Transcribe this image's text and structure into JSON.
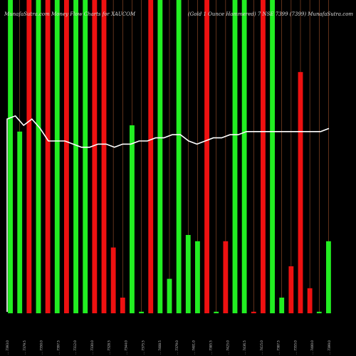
{
  "chart_data": {
    "type": "bar",
    "title_left": "MunafaSutra.com  Money Flow  Charts for XAUCOM",
    "title_right": "(Gold 1 Ounce Hammered) 7 NSE 7399 (7399)  MunafaSutra.com",
    "colors": {
      "background": "#000000",
      "up": "#22ee22",
      "down": "#ee1111",
      "price_line": "#ffffff",
      "separator": "#a0522d"
    },
    "ylim": [
      0,
      100
    ],
    "x_labels": [
      "... 7393.0",
      "... 7379.5",
      "... 7350.0",
      "... 7397.5",
      "... 7312.0",
      "... 7330.0",
      "... 7328.5",
      "... 7344.0",
      "... 7375.5",
      "... 7408.5",
      "... 7379.0",
      "... 7401.0",
      "... 7385.5",
      "... 7425.0",
      "... 7436.5",
      "... 7415.0",
      "... 7387.5",
      "... 7355.0",
      "... 7400.0",
      "... 7399.0"
    ],
    "series": [
      {
        "name": "money flow",
        "values": [
          {
            "dir": "up",
            "v": 100
          },
          {
            "dir": "up",
            "v": 58
          },
          {
            "dir": "down",
            "v": 100
          },
          {
            "dir": "up",
            "v": 100
          },
          {
            "dir": "down",
            "v": 100
          },
          {
            "dir": "up",
            "v": 100
          },
          {
            "dir": "down",
            "v": 100
          },
          {
            "dir": "up",
            "v": 100
          },
          {
            "dir": "up",
            "v": 100
          },
          {
            "dir": "down",
            "v": 100
          },
          {
            "dir": "down",
            "v": 100
          },
          {
            "dir": "down",
            "v": 21
          },
          {
            "dir": "down",
            "v": 5
          },
          {
            "dir": "up",
            "v": 60
          },
          {
            "dir": "up",
            "v": 0.5
          },
          {
            "dir": "down",
            "v": 100
          },
          {
            "dir": "up",
            "v": 100
          },
          {
            "dir": "up",
            "v": 11
          },
          {
            "dir": "up",
            "v": 100
          },
          {
            "dir": "up",
            "v": 25
          },
          {
            "dir": "up",
            "v": 23
          },
          {
            "dir": "down",
            "v": 100
          },
          {
            "dir": "up",
            "v": 0.5
          },
          {
            "dir": "down",
            "v": 23
          },
          {
            "dir": "up",
            "v": 100
          },
          {
            "dir": "up",
            "v": 100
          },
          {
            "dir": "down",
            "v": 0.5
          },
          {
            "dir": "down",
            "v": 100
          },
          {
            "dir": "up",
            "v": 100
          },
          {
            "dir": "up",
            "v": 5
          },
          {
            "dir": "down",
            "v": 15
          },
          {
            "dir": "down",
            "v": 77
          },
          {
            "dir": "down",
            "v": 8
          },
          {
            "dir": "up",
            "v": 0.5
          },
          {
            "dir": "up",
            "v": 23
          }
        ]
      },
      {
        "name": "price",
        "values": [
          62,
          63,
          60,
          62,
          59,
          55,
          55,
          55,
          54,
          53,
          53,
          54,
          54,
          53,
          54,
          54,
          55,
          55,
          56,
          56,
          57,
          57,
          55,
          54,
          55,
          56,
          56,
          57,
          57,
          58,
          58,
          58,
          58,
          58,
          58,
          58,
          58,
          58,
          58,
          59
        ]
      }
    ]
  }
}
